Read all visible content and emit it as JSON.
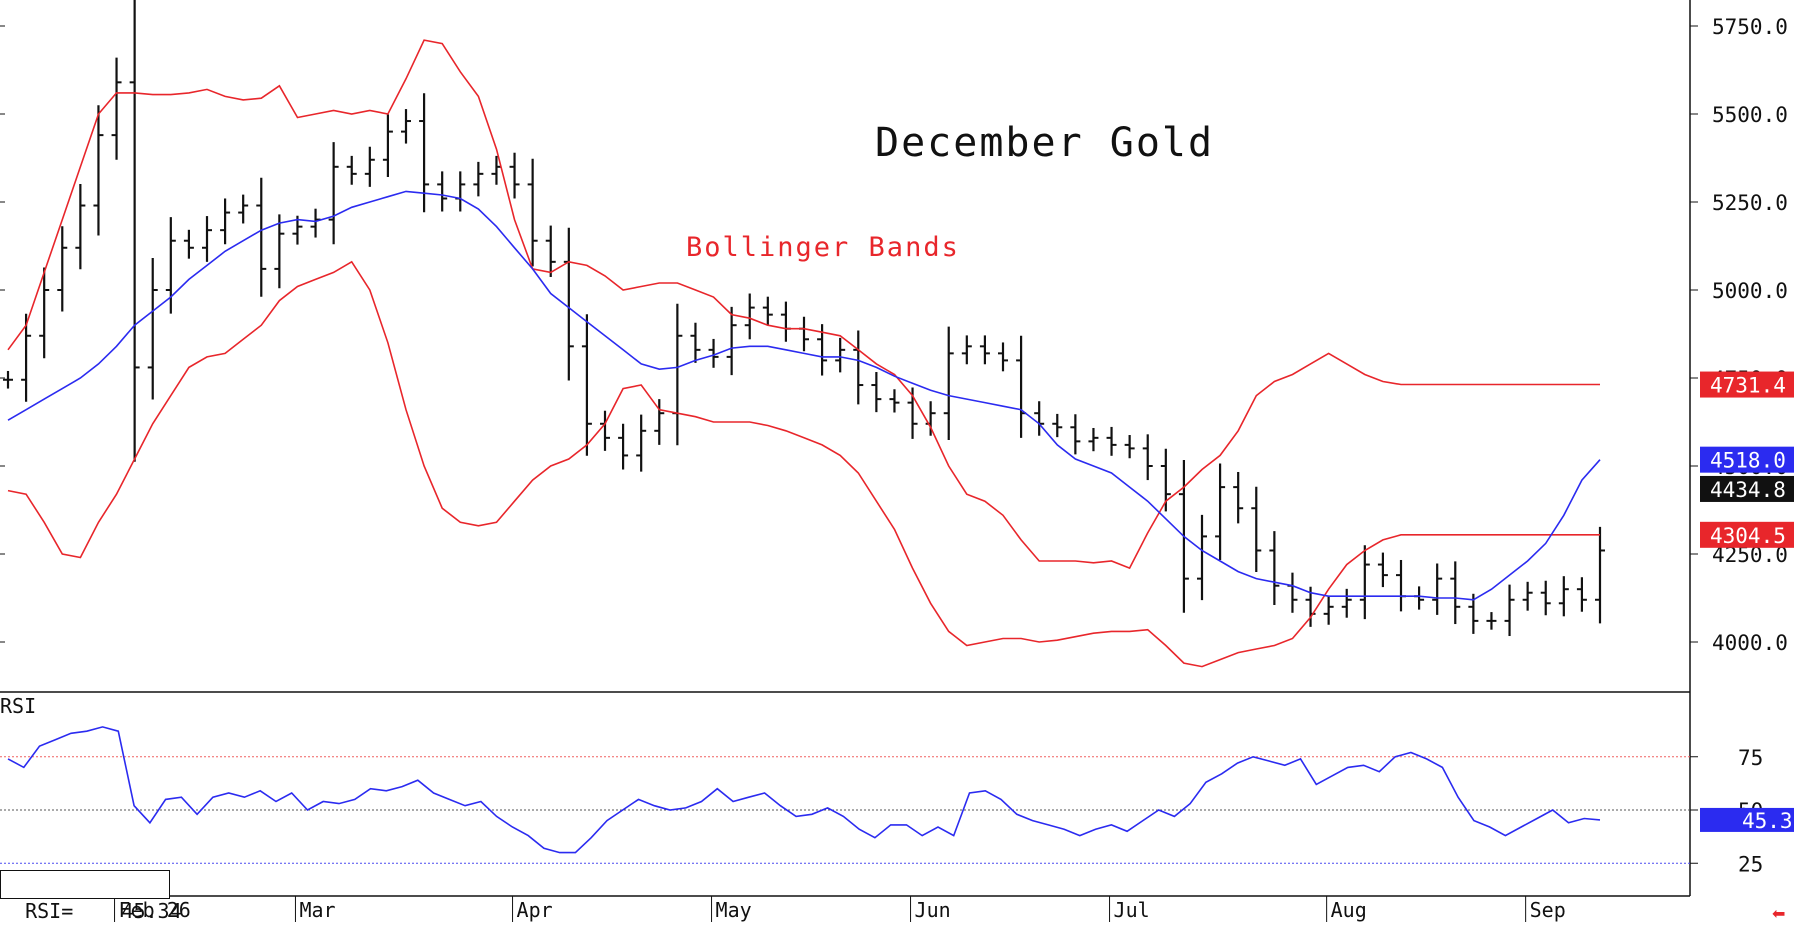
{
  "chart_data": [
    {
      "type": "bar",
      "subtype": "ohlc",
      "title": "December Gold",
      "annotation": "Bollinger Bands",
      "ylim": [
        3880,
        5800
      ],
      "y_ticks": [
        "5750.0",
        "5500.0",
        "5250.0",
        "5000.0",
        "4750.0",
        "4500.0",
        "4250.0",
        "4000.0"
      ],
      "y_tick_values": [
        5750,
        5500,
        5250,
        5000,
        4750,
        4500,
        4250,
        4000
      ],
      "x_labels": [
        "Feb 26",
        "Mar",
        "Apr",
        "May",
        "Jun",
        "Jul",
        "Aug",
        "Sep"
      ],
      "x_label_index": [
        6,
        16,
        28,
        39,
        50,
        61,
        73,
        84
      ],
      "n_bars": 89,
      "price_tags": [
        {
          "label": "4731.4",
          "value": 4731.4,
          "color": "#e8262b"
        },
        {
          "label": "4518.0",
          "value": 4518.0,
          "color": "#2b2bf0"
        },
        {
          "label": "4434.8",
          "value": 4434.8,
          "color": "#111111"
        },
        {
          "label": "4304.5",
          "value": 4304.5,
          "color": "#e8262b"
        }
      ],
      "close": [
        4745,
        4870,
        5000,
        5120,
        5240,
        5440,
        5590,
        4780,
        5000,
        5140,
        5120,
        5170,
        5220,
        5240,
        5060,
        5160,
        5180,
        5200,
        5350,
        5330,
        5370,
        5450,
        5480,
        5300,
        5260,
        5300,
        5330,
        5350,
        5300,
        5140,
        5080,
        4840,
        4620,
        4580,
        4530,
        4600,
        4650,
        4870,
        4830,
        4810,
        4900,
        4950,
        4930,
        4890,
        4860,
        4800,
        4830,
        4730,
        4690,
        4680,
        4620,
        4650,
        4820,
        4840,
        4820,
        4800,
        4650,
        4620,
        4610,
        4570,
        4580,
        4560,
        4550,
        4500,
        4420,
        4180,
        4300,
        4440,
        4380,
        4260,
        4160,
        4120,
        4080,
        4100,
        4120,
        4220,
        4190,
        4130,
        4120,
        4180,
        4100,
        4060,
        4060,
        4120,
        4140,
        4110,
        4150,
        4120,
        4260
      ],
      "middle_band": [
        4630,
        4660,
        4690,
        4720,
        4750,
        4790,
        4840,
        4900,
        4940,
        4980,
        5030,
        5070,
        5110,
        5140,
        5170,
        5190,
        5200,
        5195,
        5210,
        5235,
        5250,
        5265,
        5280,
        5275,
        5270,
        5260,
        5230,
        5180,
        5120,
        5060,
        4990,
        4950,
        4910,
        4870,
        4830,
        4790,
        4775,
        4780,
        4800,
        4815,
        4835,
        4840,
        4840,
        4830,
        4820,
        4810,
        4810,
        4800,
        4780,
        4755,
        4735,
        4715,
        4700,
        4690,
        4680,
        4670,
        4660,
        4620,
        4560,
        4520,
        4500,
        4480,
        4440,
        4400,
        4350,
        4300,
        4260,
        4230,
        4200,
        4180,
        4170,
        4160,
        4140,
        4130,
        4130,
        4130,
        4130,
        4130,
        4130,
        4125,
        4125,
        4120,
        4150,
        4190,
        4230,
        4280,
        4360,
        4460,
        4518
      ],
      "upper_band": [
        4830,
        4900,
        5050,
        5200,
        5350,
        5500,
        5560,
        5560,
        5555,
        5555,
        5560,
        5570,
        5550,
        5540,
        5545,
        5580,
        5490,
        5500,
        5510,
        5500,
        5510,
        5500,
        5600,
        5710,
        5700,
        5620,
        5550,
        5400,
        5200,
        5060,
        5050,
        5080,
        5070,
        5040,
        5000,
        5010,
        5020,
        5020,
        5000,
        4980,
        4930,
        4920,
        4900,
        4890,
        4890,
        4880,
        4870,
        4830,
        4790,
        4760,
        4700,
        4610,
        4500,
        4420,
        4400,
        4360,
        4290,
        4230,
        4230,
        4230,
        4225,
        4230,
        4210,
        4310,
        4400,
        4440,
        4490,
        4530,
        4600,
        4700,
        4740,
        4760,
        4790,
        4820,
        4790,
        4760,
        4740,
        4731.4,
        4731.4,
        4731.4,
        4731.4,
        4731.4,
        4731.4,
        4731.4,
        4731.4,
        4731.4,
        4731.4,
        4731.4,
        4731.4
      ],
      "lower_band": [
        4430,
        4420,
        4340,
        4250,
        4240,
        4340,
        4420,
        4520,
        4620,
        4700,
        4780,
        4810,
        4820,
        4860,
        4900,
        4970,
        5010,
        5030,
        5050,
        5080,
        5000,
        4850,
        4660,
        4500,
        4380,
        4340,
        4330,
        4340,
        4400,
        4460,
        4500,
        4520,
        4560,
        4620,
        4720,
        4730,
        4660,
        4650,
        4640,
        4625,
        4625,
        4625,
        4615,
        4600,
        4580,
        4560,
        4530,
        4480,
        4400,
        4320,
        4210,
        4110,
        4030,
        3990,
        4000,
        4010,
        4010,
        4000,
        4005,
        4015,
        4025,
        4030,
        4030,
        4035,
        3990,
        3940,
        3930,
        3950,
        3970,
        3980,
        3990,
        4010,
        4070,
        4150,
        4220,
        4260,
        4290,
        4304.5,
        4304.5,
        4304.5,
        4304.5,
        4304.5,
        4304.5,
        4304.5,
        4304.5,
        4304.5,
        4304.5,
        4304.5,
        4304.5
      ],
      "legend": "none",
      "grid": false
    },
    {
      "type": "line",
      "title": "RSI",
      "ylim": [
        0,
        100
      ],
      "y_ticks": [
        "75",
        "50",
        "25"
      ],
      "y_tick_values": [
        75,
        50,
        25
      ],
      "reference_lines": [
        75,
        50,
        25
      ],
      "reference_colors": [
        "#f06060",
        "#555555",
        "#4b4bf0"
      ],
      "readout_label": "RSI=",
      "readout_value": "45.34",
      "last_value_tag": "45.3",
      "series": [
        {
          "values": [
            74,
            70,
            80,
            83,
            86,
            87,
            89,
            87,
            52,
            44,
            55,
            56,
            48,
            56,
            58,
            56,
            59,
            54,
            58,
            50,
            54,
            53,
            55,
            60,
            59,
            61,
            64,
            58,
            55,
            52,
            54,
            47,
            42,
            38,
            32,
            30,
            30,
            37,
            45,
            50,
            55,
            52,
            50,
            51,
            54,
            60,
            54,
            56,
            58,
            52,
            47,
            48,
            51,
            47,
            41,
            37,
            43,
            43,
            38,
            42,
            38,
            58,
            59,
            55,
            48,
            45,
            43,
            41,
            38,
            41,
            43,
            40,
            45,
            50,
            47,
            53,
            63,
            67,
            72,
            75,
            73,
            71,
            74,
            62,
            66,
            70,
            71,
            68,
            75,
            77,
            74,
            70,
            56,
            45,
            42,
            38,
            42,
            46,
            50,
            44,
            46,
            45.34
          ],
          "color": "#2b2bf0"
        }
      ]
    }
  ]
}
